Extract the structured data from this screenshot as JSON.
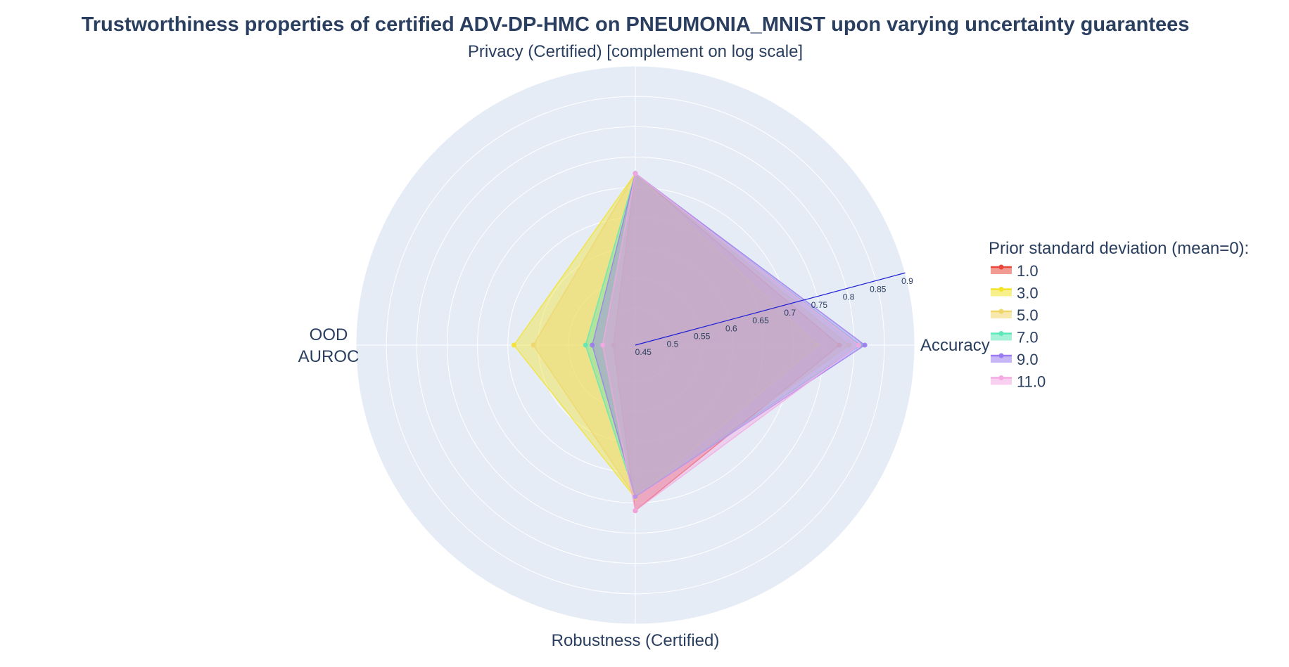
{
  "chart_data": {
    "type": "radar",
    "title": "Trustworthiness properties of certified ADV-DP-HMC on PNEUMONIA_MNIST upon varying uncertainty guarantees",
    "axes": [
      "Accuracy",
      "Privacy (Certified) [complement on log scale]",
      "OOD AUROC",
      "Robustness (Certified)"
    ],
    "axis_display": [
      [
        "Accuracy"
      ],
      [
        "Privacy (Certified) [complement on log scale]"
      ],
      [
        "OOD",
        "AUROC"
      ],
      [
        "Robustness (Certified)"
      ]
    ],
    "radial_range": [
      0.44,
      0.9
    ],
    "radial_ticks": [
      0.45,
      0.5,
      0.55,
      0.6,
      0.65,
      0.7,
      0.75,
      0.8,
      0.85,
      0.9
    ],
    "radial_tick_labels": [
      "0.45",
      "0.5",
      "0.55",
      "0.6",
      "0.65",
      "0.7",
      "0.75",
      "0.8",
      "0.85",
      "0.9"
    ],
    "grid": true,
    "legend_title": "Prior standard deviation (mean=0):",
    "legend_position": "right",
    "series": [
      {
        "name": "1.0",
        "color": "#e8483b",
        "values": {
          "Accuracy": 0.776,
          "Privacy (Certified) [complement on log scale]": 0.723,
          "OOD AUROC": 0.476,
          "Robustness (Certified)": 0.713
        }
      },
      {
        "name": "3.0",
        "color": "#f2e32c",
        "values": {
          "Accuracy": 0.74,
          "Privacy (Certified) [complement on log scale]": 0.723,
          "OOD AUROC": 0.64,
          "Robustness (Certified)": 0.692
        }
      },
      {
        "name": "5.0",
        "color": "#f0d66a",
        "values": {
          "Accuracy": 0.792,
          "Privacy (Certified) [complement on log scale]": 0.723,
          "OOD AUROC": 0.608,
          "Robustness (Certified)": 0.69
        }
      },
      {
        "name": "7.0",
        "color": "#5de8b8",
        "values": {
          "Accuracy": 0.81,
          "Privacy (Certified) [complement on log scale]": 0.723,
          "OOD AUROC": 0.522,
          "Robustness (Certified)": 0.69
        }
      },
      {
        "name": "9.0",
        "color": "#9b7bf0",
        "values": {
          "Accuracy": 0.818,
          "Privacy (Certified) [complement on log scale]": 0.723,
          "OOD AUROC": 0.511,
          "Robustness (Certified)": 0.69
        }
      },
      {
        "name": "11.0",
        "color": "#f4a9e3",
        "values": {
          "Accuracy": 0.808,
          "Privacy (Certified) [complement on log scale]": 0.723,
          "OOD AUROC": 0.494,
          "Robustness (Certified)": 0.713
        }
      }
    ]
  }
}
